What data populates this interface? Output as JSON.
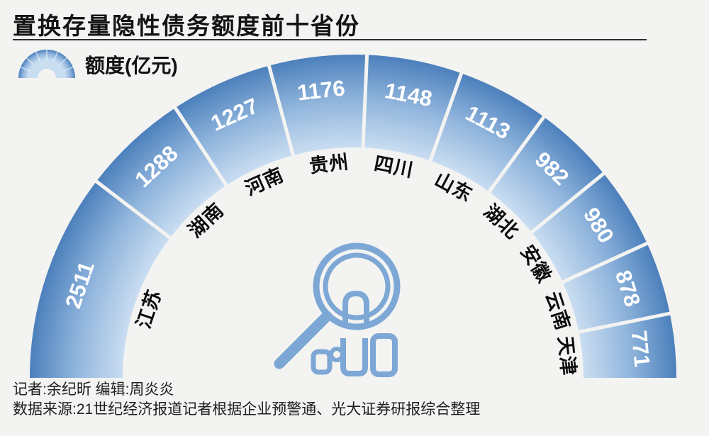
{
  "title": "置换存量隐性债务额度前十省份",
  "legend": {
    "label": "额度(亿元)",
    "icon": "gauge-arc-icon"
  },
  "credits": {
    "line1": "记者:余纪昕 编辑:周炎炎",
    "line2": "数据来源:21世纪经济报道记者根据企业预警通、光大证券研报综合整理"
  },
  "colors": {
    "background": "#f3f3f2",
    "ring_inner": "#c9ddf1",
    "ring_mid": "#8fb4dc",
    "ring_outer": "#4c80bc",
    "divider": "#f3f3f2",
    "value_text": "#ffffff",
    "category_text": "#0d0d0d",
    "title_text": "#141414",
    "center_icon": "#7da7d5",
    "legend_icon_tick": "rgba(255,255,255,0.55)"
  },
  "center_icon": "magnifier-with-bars-icon",
  "chart_data": {
    "type": "pie",
    "variant": "half-donut-gauge",
    "title": "置换存量隐性债务额度前十省份",
    "legend_entries": [
      "额度(亿元)"
    ],
    "unit": "亿元",
    "categories": [
      "江苏",
      "湖南",
      "河南",
      "贵州",
      "四川",
      "山东",
      "湖北",
      "安徽",
      "云南",
      "天津"
    ],
    "values": [
      2511,
      1288,
      1227,
      1176,
      1148,
      1113,
      982,
      980,
      878,
      771
    ],
    "angle_span_deg": 180,
    "angles_proportional_to_values": true,
    "grid": false,
    "legend_position": "top-left"
  }
}
